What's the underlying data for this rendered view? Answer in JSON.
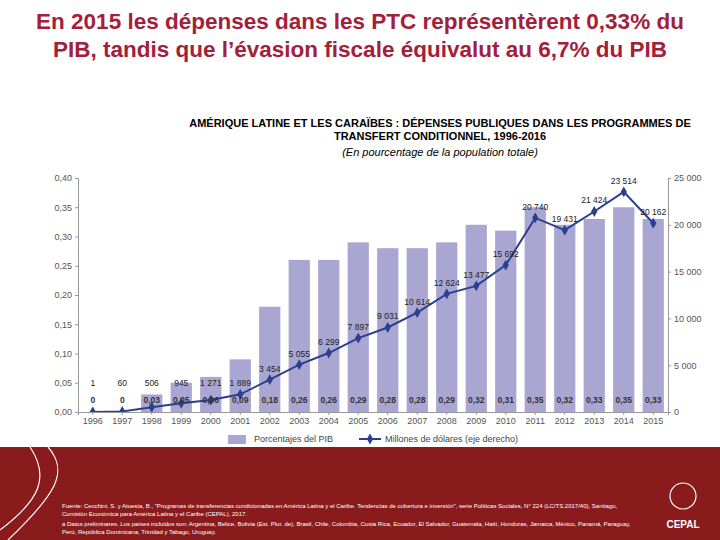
{
  "slide": {
    "title": "En 2015 les dépenses dans les PTC représentèrent 0,33% du PIB, tandis que l’évasion fiscale équivalut au 6,7% du PIB",
    "logo": "CEPAL"
  },
  "chart_data": {
    "type": "bar",
    "title": "AMÉRIQUE LATINE ET LES CARAÏBES : DÉPENSES PUBLIQUES DANS LES PROGRAMMES DE TRANSFERT CONDITIONNEL, 1996-2016",
    "subtitle": "(En pourcentage de la population totale)",
    "categories": [
      "1996",
      "1997",
      "1998",
      "1999",
      "2000",
      "2001",
      "2002",
      "2003",
      "2004",
      "2005",
      "2006",
      "2007",
      "2008",
      "2009",
      "2010",
      "2011",
      "2012",
      "2013",
      "2014",
      "2015"
    ],
    "series": [
      {
        "name": "Porcentajes del PIB",
        "type": "bar",
        "color": "#aaa6d2",
        "values": [
          0,
          0,
          0.03,
          0.05,
          0.06,
          0.09,
          0.18,
          0.26,
          0.26,
          0.29,
          0.28,
          0.28,
          0.29,
          0.32,
          0.31,
          0.35,
          0.32,
          0.33,
          0.35,
          0.33
        ],
        "value_labels": [
          "0",
          "0",
          "0,03",
          "0,05",
          "0,06",
          "0,09",
          "0,18",
          "0,26",
          "0,26",
          "0,29",
          "0,28",
          "0,28",
          "0,29",
          "0,32",
          "0,31",
          "0,35",
          "0,32",
          "0,33",
          "0,35",
          "0,33"
        ]
      },
      {
        "name": "Millones de dólares (eje derecho)",
        "type": "line",
        "axis": "y2",
        "color": "#2c3e8f",
        "marker": "diamond",
        "values": [
          1,
          60,
          506,
          945,
          1271,
          1889,
          3454,
          5055,
          6299,
          7897,
          9031,
          10614,
          12624,
          13477,
          15692,
          20740,
          19431,
          21424,
          23514,
          20162
        ],
        "value_labels": [
          "1",
          "60",
          "506",
          "945",
          "1 271",
          "1 889",
          "3 454",
          "5 055",
          "6 299",
          "7 897",
          "9 031",
          "10 614",
          "12 624",
          "13 477",
          "15 692",
          "20 740",
          "19 431",
          "21 424",
          "23 514",
          "20 162"
        ]
      }
    ],
    "ylim": [
      0,
      0.4
    ],
    "yticks": [
      {
        "value": 0,
        "label": "0,00"
      },
      {
        "value": 0.05,
        "label": "0,05"
      },
      {
        "value": 0.1,
        "label": "0,10"
      },
      {
        "value": 0.15,
        "label": "0,15"
      },
      {
        "value": 0.2,
        "label": "0,20"
      },
      {
        "value": 0.25,
        "label": "0,25"
      },
      {
        "value": 0.3,
        "label": "0,30"
      },
      {
        "value": 0.35,
        "label": "0,35"
      },
      {
        "value": 0.4,
        "label": "0,40"
      }
    ],
    "y2lim": [
      0,
      25000
    ],
    "y2ticks": [
      0,
      {
        "value": 5000,
        "label": "5 000"
      },
      {
        "value": 10000,
        "label": "10 000"
      },
      {
        "value": 15000,
        "label": "15 000"
      },
      {
        "value": 20000,
        "label": "20 000"
      },
      {
        "value": 25000,
        "label": "25 000"
      }
    ],
    "data_labels": true,
    "grid": false,
    "legend": "bottom",
    "source": "Fuente: Cecchini, S. y Atuesta, B., \"Programas de transferencias condicionadas en América Latina y el Caribe. Tendencias de cobertura e inversión\", serie Políticas Sociales, N° 224 (LC/TS.2017/40), Santiago, Comisión Económica para América Latina y el Caribe (CEPAL), 2017.",
    "note": "a Datos preliminares. Los países incluidos son: Argentina, Belice, Bolivia (Est. Plur. de), Brasil, Chile, Colombia, Costa Rica, Ecuador, El Salvador, Guatemala, Haití, Honduras, Jamaica, México, Panamá, Paraguay, Perú, República Dominicana, Trinidad y Tabago, Uruguay."
  }
}
